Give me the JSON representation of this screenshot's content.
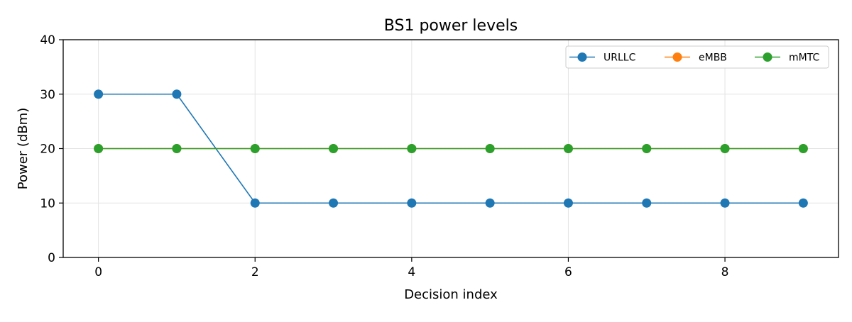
{
  "chart_data": {
    "type": "line",
    "title": "BS1 power levels",
    "xlabel": "Decision index",
    "ylabel": "Power (dBm)",
    "xlim": [
      -0.45,
      9.45
    ],
    "ylim": [
      0,
      40
    ],
    "xticks": [
      0,
      2,
      4,
      6,
      8
    ],
    "yticks": [
      0,
      10,
      20,
      30,
      40
    ],
    "grid": true,
    "legend_position": "top-right",
    "x": [
      0,
      1,
      2,
      3,
      4,
      5,
      6,
      7,
      8,
      9
    ],
    "series": [
      {
        "name": "URLLC",
        "color": "#1f77b4",
        "marker": "circle",
        "values": [
          30,
          30,
          10,
          10,
          10,
          10,
          10,
          10,
          10,
          10
        ]
      },
      {
        "name": "eMBB",
        "color": "#ff7f0e",
        "marker": "circle",
        "values": [
          20,
          20,
          20,
          20,
          20,
          20,
          20,
          20,
          20,
          20
        ]
      },
      {
        "name": "mMTC",
        "color": "#2ca02c",
        "marker": "circle",
        "values": [
          20,
          20,
          20,
          20,
          20,
          20,
          20,
          20,
          20,
          20
        ]
      }
    ]
  }
}
